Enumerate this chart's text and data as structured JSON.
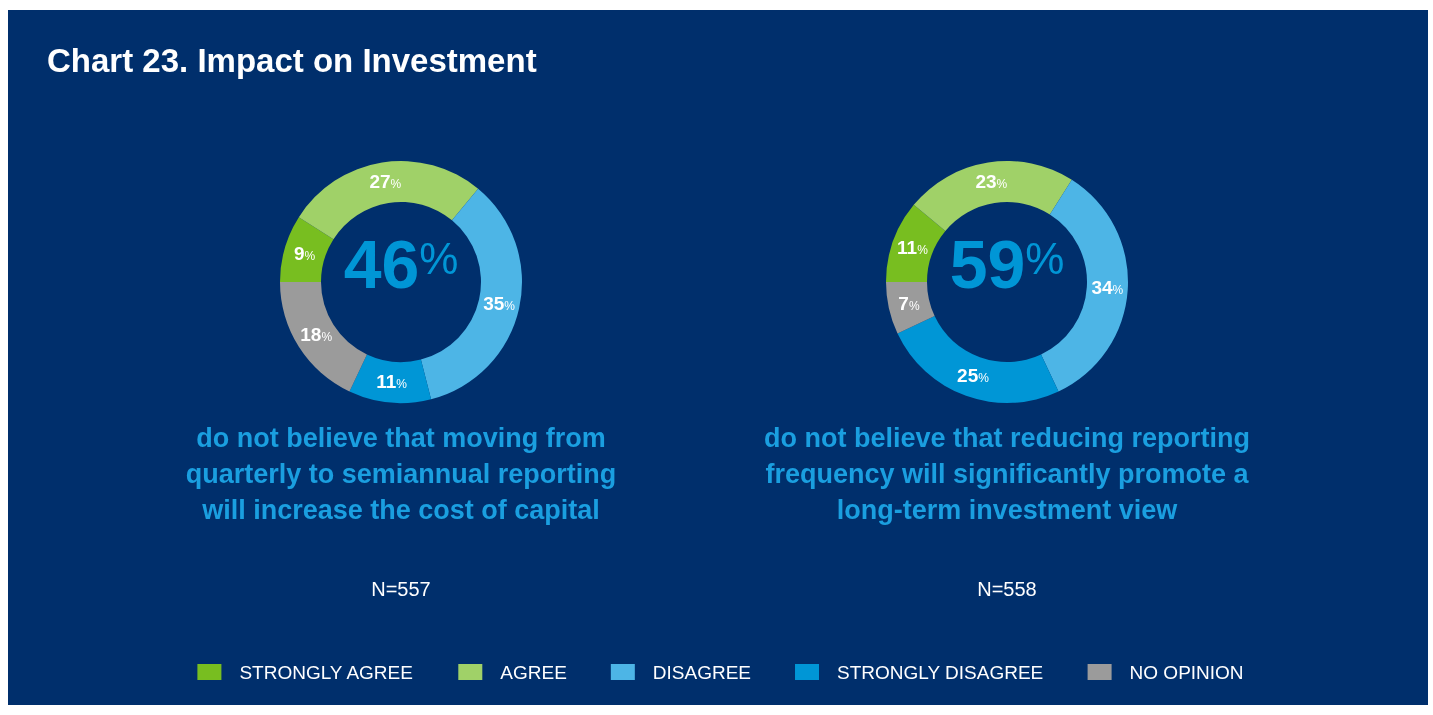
{
  "chart_data": [
    {
      "type": "donut",
      "title": "Chart 23. Impact on Investment",
      "categories": [
        "STRONGLY AGREE",
        "AGREE",
        "DISAGREE",
        "STRONGLY DISAGREE",
        "NO OPINION"
      ],
      "values": [
        9,
        27,
        35,
        11,
        18
      ],
      "value_labels": [
        "9%",
        "27%",
        "35%",
        "11%",
        "18%"
      ],
      "colors": [
        "#78be20",
        "#a0d168",
        "#4db5e6",
        "#0096d6",
        "#9b9b9b"
      ],
      "legend": "bottom",
      "annotations": [
        "46%",
        "do not believe that moving from",
        "quarterly to semiannual reporting",
        "will increase the cost of capital",
        "N=557"
      ]
    },
    {
      "type": "donut",
      "categories": [
        null,
        null,
        null,
        null,
        null
      ],
      "values": [
        11,
        23,
        34,
        25,
        7
      ],
      "value_labels": [
        "11%",
        "23%",
        "34%",
        "25%",
        "7%"
      ],
      "colors": [
        "#78be20",
        "#a0d168",
        "#4db5e6",
        "#0096d6",
        "#9b9b9b"
      ],
      "annotations": [
        "59%",
        "do not believe that reducing reporting",
        "frequency will significantly promote a",
        "long-term investment view",
        "N=558"
      ]
    }
  ]
}
